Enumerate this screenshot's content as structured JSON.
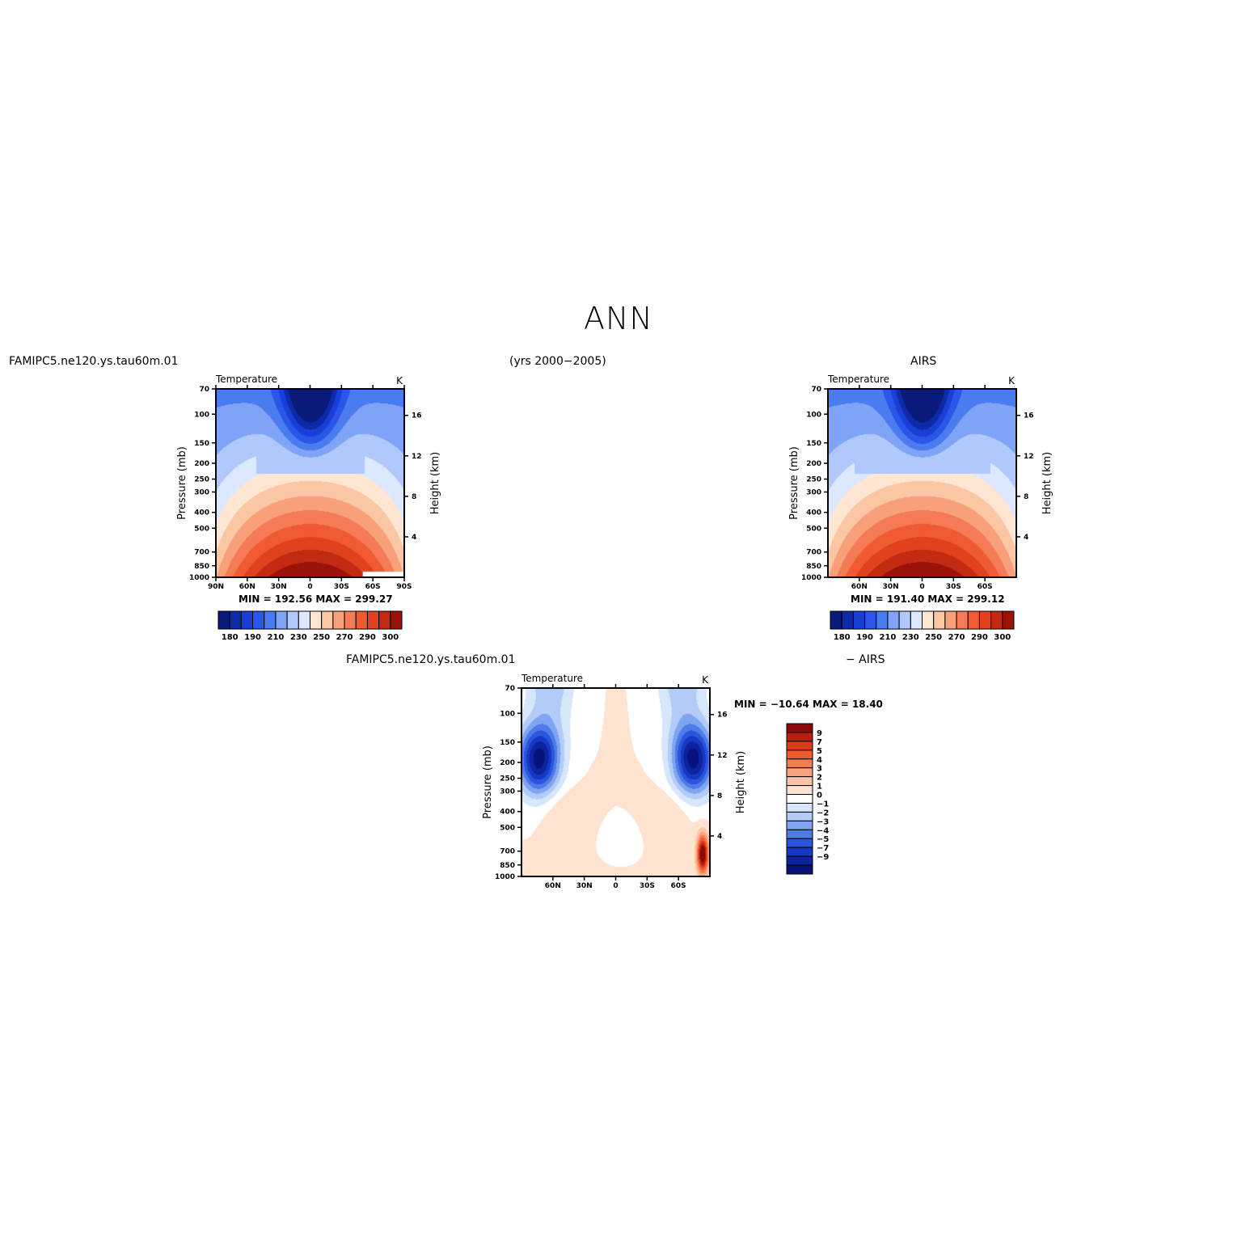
{
  "page": {
    "title": "ANN",
    "subtitle": "(yrs 2000−2005)"
  },
  "chart_data": [
    {
      "type": "heatmap",
      "case_label": "FAMIPC5.ne120.ys.tau60m.01",
      "title": "Temperature",
      "units": "K",
      "xlabel": "",
      "ylabel": "Pressure (mb)",
      "y2label": "Height (km)",
      "x_ticks": [
        "90N",
        "60N",
        "30N",
        "0",
        "30S",
        "60S",
        "90S"
      ],
      "y_ticks": [
        "70",
        "100",
        "150",
        "200",
        "250",
        "300",
        "400",
        "500",
        "700",
        "850",
        "1000"
      ],
      "y2_ticks": [
        "16",
        "12",
        "8",
        "4"
      ],
      "stats": "MIN = 192.56   MAX = 299.27",
      "min": 192.56,
      "max": 299.27,
      "colorbar": {
        "labels": [
          "180",
          "190",
          "210",
          "230",
          "250",
          "270",
          "290",
          "300"
        ],
        "colors": [
          "#0a1a7a",
          "#0d2aa8",
          "#1a3fd6",
          "#2b56e8",
          "#4a7cf0",
          "#7ea3f7",
          "#b0c8fb",
          "#dbe8ff",
          "#ffe6d2",
          "#fbc6a3",
          "#f7a07a",
          "#f47b55",
          "#f05a33",
          "#e0421e",
          "#c32a12",
          "#9a1208"
        ]
      }
    },
    {
      "type": "heatmap",
      "case_label": "AIRS",
      "title": "Temperature",
      "units": "K",
      "xlabel": "",
      "ylabel": "Pressure (mb)",
      "y2label": "Height (km)",
      "x_ticks": [
        "60N",
        "30N",
        "0",
        "30S",
        "60S"
      ],
      "y_ticks": [
        "70",
        "100",
        "150",
        "200",
        "250",
        "300",
        "400",
        "500",
        "700",
        "850",
        "1000"
      ],
      "y2_ticks": [
        "16",
        "12",
        "8",
        "4"
      ],
      "stats": "MIN = 191.40   MAX = 299.12",
      "min": 191.4,
      "max": 299.12,
      "colorbar": {
        "labels": [
          "180",
          "190",
          "210",
          "230",
          "250",
          "270",
          "290",
          "300"
        ],
        "colors": [
          "#0a1a7a",
          "#0d2aa8",
          "#1a3fd6",
          "#2b56e8",
          "#4a7cf0",
          "#7ea3f7",
          "#b0c8fb",
          "#dbe8ff",
          "#ffe6d2",
          "#fbc6a3",
          "#f7a07a",
          "#f47b55",
          "#f05a33",
          "#e0421e",
          "#c32a12",
          "#9a1208"
        ]
      }
    },
    {
      "type": "heatmap",
      "case_label": "FAMIPC5.ne120.ys.tau60m.01",
      "diff_label": "− AIRS",
      "title": "Temperature",
      "units": "K",
      "xlabel": "",
      "ylabel": "Pressure (mb)",
      "y2label": "Height (km)",
      "x_ticks": [
        "60N",
        "30N",
        "0",
        "30S",
        "60S"
      ],
      "y_ticks": [
        "70",
        "100",
        "150",
        "200",
        "250",
        "300",
        "400",
        "500",
        "700",
        "850",
        "1000"
      ],
      "y2_ticks": [
        "16",
        "12",
        "8",
        "4"
      ],
      "stats": "MIN = −10.64   MAX =  18.40",
      "min": -10.64,
      "max": 18.4,
      "colorbar": {
        "labels": [
          "9",
          "7",
          "5",
          "4",
          "3",
          "2",
          "1",
          "0",
          "−1",
          "−2",
          "−3",
          "−4",
          "−5",
          "−7",
          "−9"
        ],
        "colors": [
          "#8a0a0a",
          "#b81f10",
          "#dd3a18",
          "#f05a30",
          "#f47d55",
          "#f8a27e",
          "#fbc6a8",
          "#fde3d0",
          "#ffffff",
          "#d6e6fb",
          "#b3cbf7",
          "#7fa5f1",
          "#4f7be8",
          "#2a55dc",
          "#1638c4",
          "#0d23a0",
          "#08137a"
        ]
      }
    }
  ]
}
